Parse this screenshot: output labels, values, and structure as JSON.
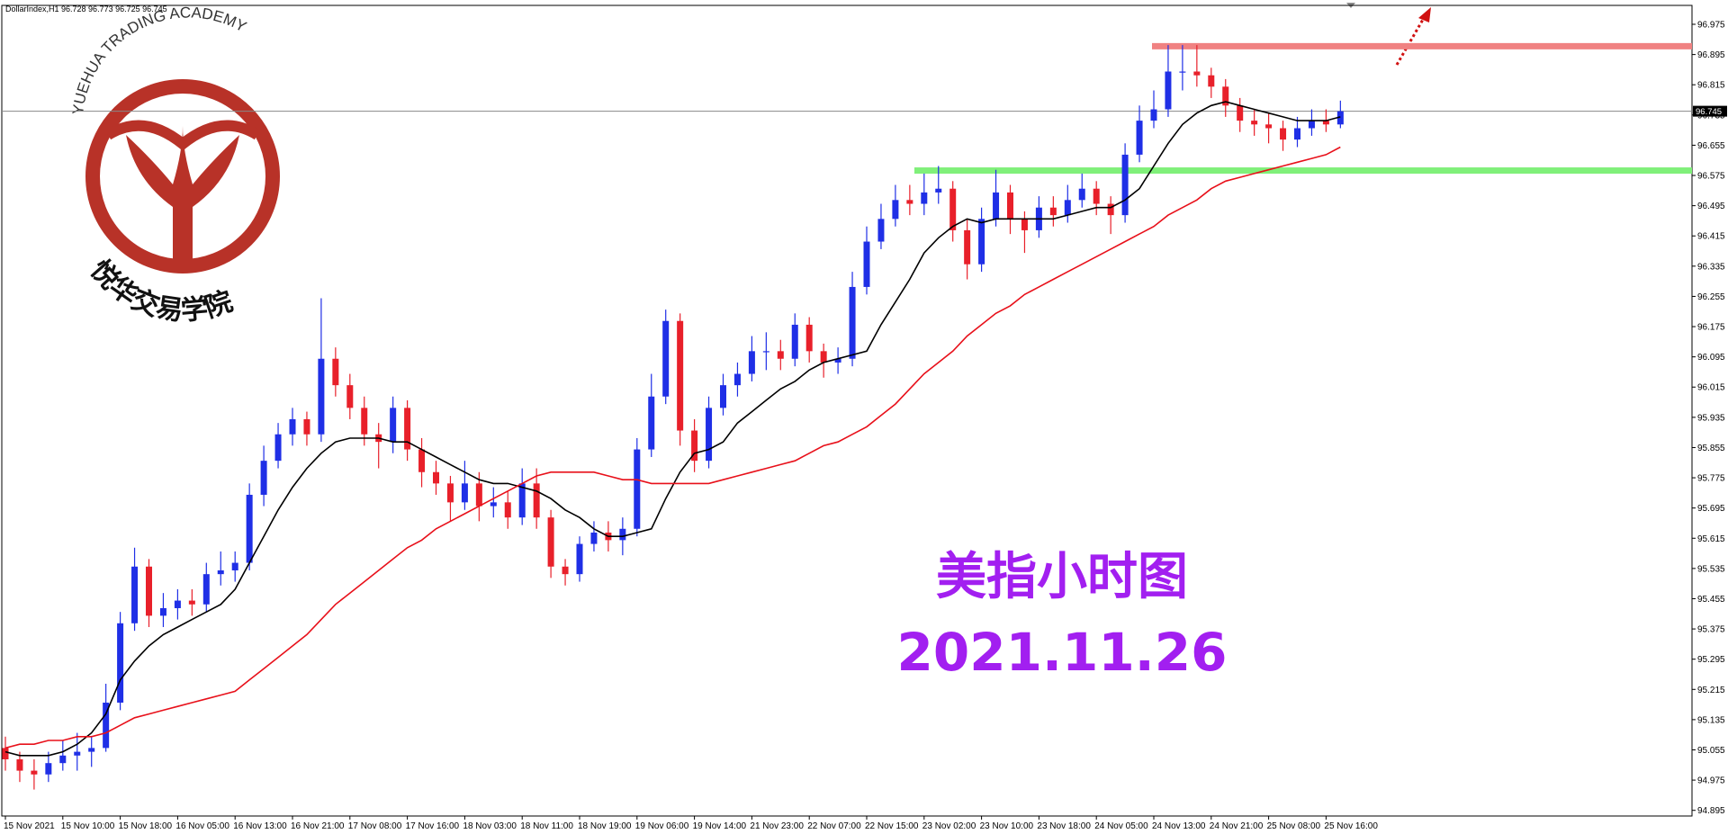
{
  "chart_data": {
    "type": "candlestick",
    "header": "DollarIndex,H1  96.728 96.773 96.725 96.745",
    "logo_text": "YUEHUA TRADING ACADEMY",
    "logo_subtext": "悦华交易学院",
    "annotation_title": "美指小时图",
    "annotation_date": "2021.11.26",
    "up_color": "#1f2fe6",
    "down_color": "#e8202a",
    "current_price": 96.745,
    "resistance": {
      "value": 96.917,
      "color": "#f08282"
    },
    "support": {
      "value": 96.588,
      "color": "#80f07a"
    },
    "ylim": [
      94.88,
      97.025
    ],
    "yticks": [
      96.975,
      96.895,
      96.815,
      96.735,
      96.655,
      96.575,
      96.495,
      96.415,
      96.335,
      96.255,
      96.175,
      96.095,
      96.015,
      95.935,
      95.855,
      95.775,
      95.695,
      95.615,
      95.535,
      95.455,
      95.375,
      95.295,
      95.215,
      95.135,
      95.055,
      94.975,
      94.895
    ],
    "categories": [
      "15 Nov 2021",
      null,
      null,
      null,
      "15 Nov 10:00",
      null,
      null,
      null,
      "15 Nov 18:00",
      null,
      null,
      null,
      "16 Nov 05:00",
      null,
      null,
      null,
      "16 Nov 13:00",
      null,
      null,
      null,
      "16 Nov 21:00",
      null,
      null,
      null,
      "17 Nov 08:00",
      null,
      null,
      null,
      "17 Nov 16:00",
      null,
      null,
      null,
      "18 Nov 03:00",
      null,
      null,
      null,
      "18 Nov 11:00",
      null,
      null,
      null,
      "18 Nov 19:00",
      null,
      null,
      null,
      "19 Nov 06:00",
      null,
      null,
      null,
      "19 Nov 14:00",
      null,
      null,
      null,
      "21 Nov 23:00",
      null,
      null,
      null,
      "22 Nov 07:00",
      null,
      null,
      null,
      "22 Nov 15:00",
      null,
      null,
      null,
      "23 Nov 02:00",
      null,
      null,
      null,
      "23 Nov 10:00",
      null,
      null,
      null,
      "23 Nov 18:00",
      null,
      null,
      null,
      "24 Nov 05:00",
      null,
      null,
      null,
      "24 Nov 13:00",
      null,
      null,
      null,
      "24 Nov 21:00",
      null,
      null,
      null,
      "25 Nov 08:00",
      null,
      null,
      null,
      "25 Nov 16:00",
      null
    ],
    "candles": [
      [
        95.06,
        95.09,
        95.0,
        95.03
      ],
      [
        95.03,
        95.05,
        94.97,
        95.0
      ],
      [
        95.0,
        95.03,
        94.95,
        94.99
      ],
      [
        94.99,
        95.05,
        94.97,
        95.02
      ],
      [
        95.02,
        95.08,
        95.0,
        95.04
      ],
      [
        95.04,
        95.1,
        95.0,
        95.05
      ],
      [
        95.05,
        95.09,
        95.01,
        95.06
      ],
      [
        95.06,
        95.23,
        95.05,
        95.18
      ],
      [
        95.18,
        95.42,
        95.16,
        95.39
      ],
      [
        95.39,
        95.59,
        95.37,
        95.54
      ],
      [
        95.54,
        95.56,
        95.38,
        95.41
      ],
      [
        95.41,
        95.47,
        95.38,
        95.43
      ],
      [
        95.43,
        95.48,
        95.4,
        95.45
      ],
      [
        95.45,
        95.48,
        95.41,
        95.44
      ],
      [
        95.44,
        95.55,
        95.42,
        95.52
      ],
      [
        95.52,
        95.58,
        95.49,
        95.53
      ],
      [
        95.53,
        95.58,
        95.5,
        95.55
      ],
      [
        95.55,
        95.76,
        95.53,
        95.73
      ],
      [
        95.73,
        95.86,
        95.7,
        95.82
      ],
      [
        95.82,
        95.92,
        95.8,
        95.89
      ],
      [
        95.89,
        95.96,
        95.86,
        95.93
      ],
      [
        95.93,
        95.95,
        95.86,
        95.89
      ],
      [
        95.89,
        96.25,
        95.87,
        96.09
      ],
      [
        96.09,
        96.12,
        95.99,
        96.02
      ],
      [
        96.02,
        96.05,
        95.93,
        95.96
      ],
      [
        95.96,
        95.99,
        95.86,
        95.89
      ],
      [
        95.89,
        95.92,
        95.8,
        95.87
      ],
      [
        95.87,
        95.99,
        95.84,
        95.96
      ],
      [
        95.96,
        95.98,
        95.82,
        95.85
      ],
      [
        95.85,
        95.88,
        95.75,
        95.79
      ],
      [
        95.79,
        95.82,
        95.73,
        95.76
      ],
      [
        95.76,
        95.78,
        95.66,
        95.71
      ],
      [
        95.71,
        95.82,
        95.69,
        95.76
      ],
      [
        95.76,
        95.79,
        95.66,
        95.7
      ],
      [
        95.7,
        95.75,
        95.67,
        95.71
      ],
      [
        95.71,
        95.74,
        95.64,
        95.67
      ],
      [
        95.67,
        95.8,
        95.65,
        95.76
      ],
      [
        95.76,
        95.8,
        95.64,
        95.67
      ],
      [
        95.67,
        95.69,
        95.51,
        95.54
      ],
      [
        95.54,
        95.56,
        95.49,
        95.52
      ],
      [
        95.52,
        95.62,
        95.5,
        95.6
      ],
      [
        95.6,
        95.66,
        95.58,
        95.63
      ],
      [
        95.63,
        95.66,
        95.58,
        95.61
      ],
      [
        95.61,
        95.67,
        95.57,
        95.64
      ],
      [
        95.64,
        95.88,
        95.62,
        95.85
      ],
      [
        95.85,
        96.05,
        95.83,
        95.99
      ],
      [
        95.99,
        96.22,
        95.97,
        96.19
      ],
      [
        96.19,
        96.21,
        95.86,
        95.9
      ],
      [
        95.9,
        95.93,
        95.79,
        95.82
      ],
      [
        95.82,
        95.99,
        95.8,
        95.96
      ],
      [
        95.96,
        96.05,
        95.94,
        96.02
      ],
      [
        96.02,
        96.08,
        95.99,
        96.05
      ],
      [
        96.05,
        96.15,
        96.03,
        96.11
      ],
      [
        96.11,
        96.16,
        96.06,
        96.11
      ],
      [
        96.11,
        96.14,
        96.06,
        96.09
      ],
      [
        96.09,
        96.21,
        96.07,
        96.18
      ],
      [
        96.18,
        96.2,
        96.08,
        96.11
      ],
      [
        96.11,
        96.13,
        96.04,
        96.08
      ],
      [
        96.08,
        96.12,
        96.05,
        96.09
      ],
      [
        96.09,
        96.32,
        96.07,
        96.28
      ],
      [
        96.28,
        96.44,
        96.26,
        96.4
      ],
      [
        96.4,
        96.5,
        96.38,
        96.46
      ],
      [
        96.46,
        96.55,
        96.44,
        96.51
      ],
      [
        96.51,
        96.55,
        96.47,
        96.5
      ],
      [
        96.5,
        96.58,
        96.47,
        96.53
      ],
      [
        96.53,
        96.6,
        96.5,
        96.54
      ],
      [
        96.54,
        96.56,
        96.4,
        96.43
      ],
      [
        96.43,
        96.46,
        96.3,
        96.34
      ],
      [
        96.34,
        96.49,
        96.32,
        96.46
      ],
      [
        96.46,
        96.59,
        96.44,
        96.53
      ],
      [
        96.53,
        96.55,
        96.42,
        96.46
      ],
      [
        96.46,
        96.48,
        96.37,
        96.43
      ],
      [
        96.43,
        96.52,
        96.41,
        96.49
      ],
      [
        96.49,
        96.52,
        96.44,
        96.47
      ],
      [
        96.47,
        96.55,
        96.45,
        96.51
      ],
      [
        96.51,
        96.58,
        96.49,
        96.54
      ],
      [
        96.54,
        96.56,
        96.47,
        96.5
      ],
      [
        96.5,
        96.52,
        96.42,
        96.47
      ],
      [
        96.47,
        96.66,
        96.45,
        96.63
      ],
      [
        96.63,
        96.76,
        96.61,
        96.72
      ],
      [
        96.72,
        96.8,
        96.7,
        96.75
      ],
      [
        96.75,
        96.92,
        96.73,
        96.85
      ],
      [
        96.85,
        96.92,
        96.8,
        96.85
      ],
      [
        96.85,
        96.92,
        96.81,
        96.84
      ],
      [
        96.84,
        96.86,
        96.78,
        96.81
      ],
      [
        96.81,
        96.83,
        96.73,
        96.76
      ],
      [
        96.76,
        96.78,
        96.69,
        96.72
      ],
      [
        96.72,
        96.75,
        96.68,
        96.71
      ],
      [
        96.71,
        96.74,
        96.66,
        96.7
      ],
      [
        96.7,
        96.72,
        96.64,
        96.67
      ],
      [
        96.67,
        96.73,
        96.65,
        96.7
      ],
      [
        96.7,
        96.75,
        96.68,
        96.72
      ],
      [
        96.72,
        96.75,
        96.69,
        96.71
      ],
      [
        96.71,
        96.773,
        96.7,
        96.745
      ]
    ],
    "lines": [
      {
        "color": "#000000",
        "values": [
          95.05,
          95.04,
          95.04,
          95.04,
          95.05,
          95.07,
          95.1,
          95.15,
          95.24,
          95.29,
          95.33,
          95.36,
          95.38,
          95.4,
          95.42,
          95.44,
          95.48,
          95.55,
          95.62,
          95.69,
          95.75,
          95.8,
          95.84,
          95.87,
          95.88,
          95.88,
          95.88,
          95.87,
          95.87,
          95.85,
          95.83,
          95.81,
          95.79,
          95.77,
          95.76,
          95.76,
          95.75,
          95.74,
          95.72,
          95.69,
          95.67,
          95.64,
          95.62,
          95.62,
          95.63,
          95.64,
          95.72,
          95.79,
          95.84,
          95.85,
          95.87,
          95.92,
          95.95,
          95.98,
          96.01,
          96.03,
          96.06,
          96.08,
          96.09,
          96.1,
          96.11,
          96.18,
          96.24,
          96.3,
          96.37,
          96.41,
          96.44,
          96.46,
          96.45,
          96.46,
          96.46,
          96.46,
          96.46,
          96.46,
          96.47,
          96.48,
          96.49,
          96.49,
          96.51,
          96.54,
          96.6,
          96.66,
          96.71,
          96.74,
          96.76,
          96.77,
          96.76,
          96.75,
          96.74,
          96.73,
          96.72,
          96.72,
          96.72,
          96.73
        ]
      },
      {
        "color": "#e8101a",
        "values": [
          95.06,
          95.07,
          95.07,
          95.08,
          95.08,
          95.09,
          95.09,
          95.1,
          95.12,
          95.14,
          95.15,
          95.16,
          95.17,
          95.18,
          95.19,
          95.2,
          95.21,
          95.24,
          95.27,
          95.3,
          95.33,
          95.36,
          95.4,
          95.44,
          95.47,
          95.5,
          95.53,
          95.56,
          95.59,
          95.61,
          95.64,
          95.66,
          95.68,
          95.7,
          95.72,
          95.74,
          95.76,
          95.78,
          95.79,
          95.79,
          95.79,
          95.79,
          95.78,
          95.77,
          95.77,
          95.76,
          95.76,
          95.76,
          95.76,
          95.76,
          95.77,
          95.78,
          95.79,
          95.8,
          95.81,
          95.82,
          95.84,
          95.86,
          95.87,
          95.89,
          95.91,
          95.94,
          95.97,
          96.01,
          96.05,
          96.08,
          96.11,
          96.15,
          96.18,
          96.21,
          96.23,
          96.26,
          96.28,
          96.3,
          96.32,
          96.34,
          96.36,
          96.38,
          96.4,
          96.42,
          96.44,
          96.47,
          96.49,
          96.51,
          96.54,
          96.56,
          96.57,
          96.58,
          96.59,
          96.6,
          96.61,
          96.62,
          96.63,
          96.65
        ]
      }
    ]
  }
}
